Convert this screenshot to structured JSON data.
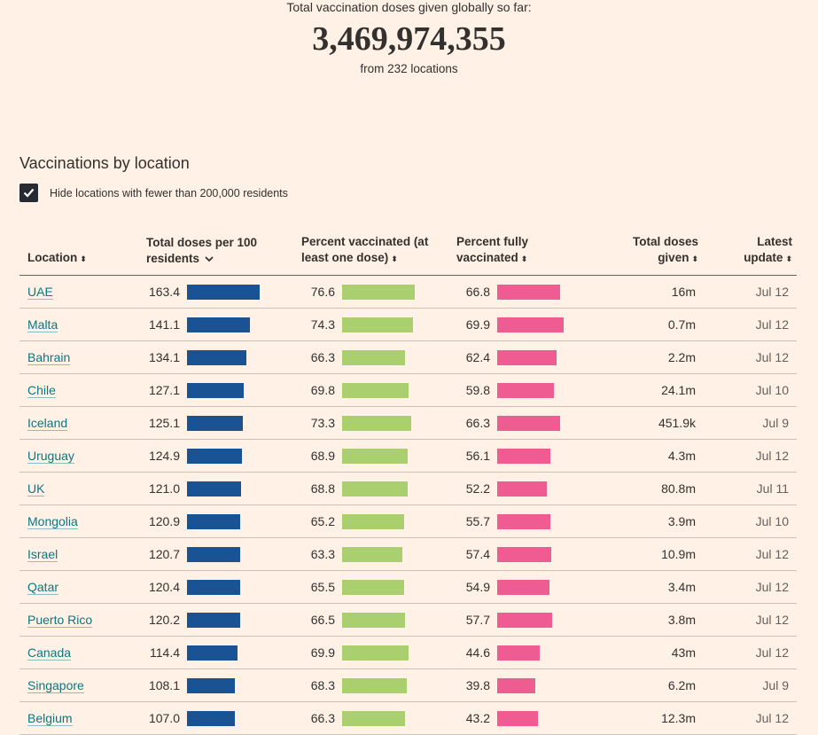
{
  "header": {
    "label": "Total vaccination doses given globally so far:",
    "total": "3,469,974,355",
    "locations": "from 232 locations"
  },
  "section_title": "Vaccinations by location",
  "filter": {
    "label": "Hide locations with fewer than 200,000 residents",
    "checked": true
  },
  "columns": {
    "location": "Location",
    "doses_per_100_a": "Total doses per 100",
    "doses_per_100_b": "residents",
    "pct_one_a": "Percent vaccinated (at",
    "pct_one_b": "least one dose)",
    "pct_full_a": "Percent fully",
    "pct_full_b": "vaccinated",
    "total_a": "Total doses",
    "total_b": "given",
    "update_a": "Latest",
    "update_b": "update"
  },
  "colors": {
    "doses_bar": "#1a5394",
    "one_dose_bar": "#aacf6f",
    "full_bar": "#ef5c91",
    "link": "#0d7680"
  },
  "rows": [
    {
      "location": "UAE",
      "per100": "163.4",
      "one": "76.6",
      "full": "66.8",
      "total": "16m",
      "update": "Jul 12"
    },
    {
      "location": "Malta",
      "per100": "141.1",
      "one": "74.3",
      "full": "69.9",
      "total": "0.7m",
      "update": "Jul 12"
    },
    {
      "location": "Bahrain",
      "per100": "134.1",
      "one": "66.3",
      "full": "62.4",
      "total": "2.2m",
      "update": "Jul 12"
    },
    {
      "location": "Chile",
      "per100": "127.1",
      "one": "69.8",
      "full": "59.8",
      "total": "24.1m",
      "update": "Jul 10"
    },
    {
      "location": "Iceland",
      "per100": "125.1",
      "one": "73.3",
      "full": "66.3",
      "total": "451.9k",
      "update": "Jul 9"
    },
    {
      "location": "Uruguay",
      "per100": "124.9",
      "one": "68.9",
      "full": "56.1",
      "total": "4.3m",
      "update": "Jul 12"
    },
    {
      "location": "UK",
      "per100": "121.0",
      "one": "68.8",
      "full": "52.2",
      "total": "80.8m",
      "update": "Jul 11"
    },
    {
      "location": "Mongolia",
      "per100": "120.9",
      "one": "65.2",
      "full": "55.7",
      "total": "3.9m",
      "update": "Jul 10"
    },
    {
      "location": "Israel",
      "per100": "120.7",
      "one": "63.3",
      "full": "57.4",
      "total": "10.9m",
      "update": "Jul 12"
    },
    {
      "location": "Qatar",
      "per100": "120.4",
      "one": "65.5",
      "full": "54.9",
      "total": "3.4m",
      "update": "Jul 12"
    },
    {
      "location": "Puerto Rico",
      "per100": "120.2",
      "one": "66.5",
      "full": "57.7",
      "total": "3.8m",
      "update": "Jul 12"
    },
    {
      "location": "Canada",
      "per100": "114.4",
      "one": "69.9",
      "full": "44.6",
      "total": "43m",
      "update": "Jul 12"
    },
    {
      "location": "Singapore",
      "per100": "108.1",
      "one": "68.3",
      "full": "39.8",
      "total": "6.2m",
      "update": "Jul 9"
    },
    {
      "location": "Belgium",
      "per100": "107.0",
      "one": "66.3",
      "full": "43.2",
      "total": "12.3m",
      "update": "Jul 12"
    }
  ]
}
